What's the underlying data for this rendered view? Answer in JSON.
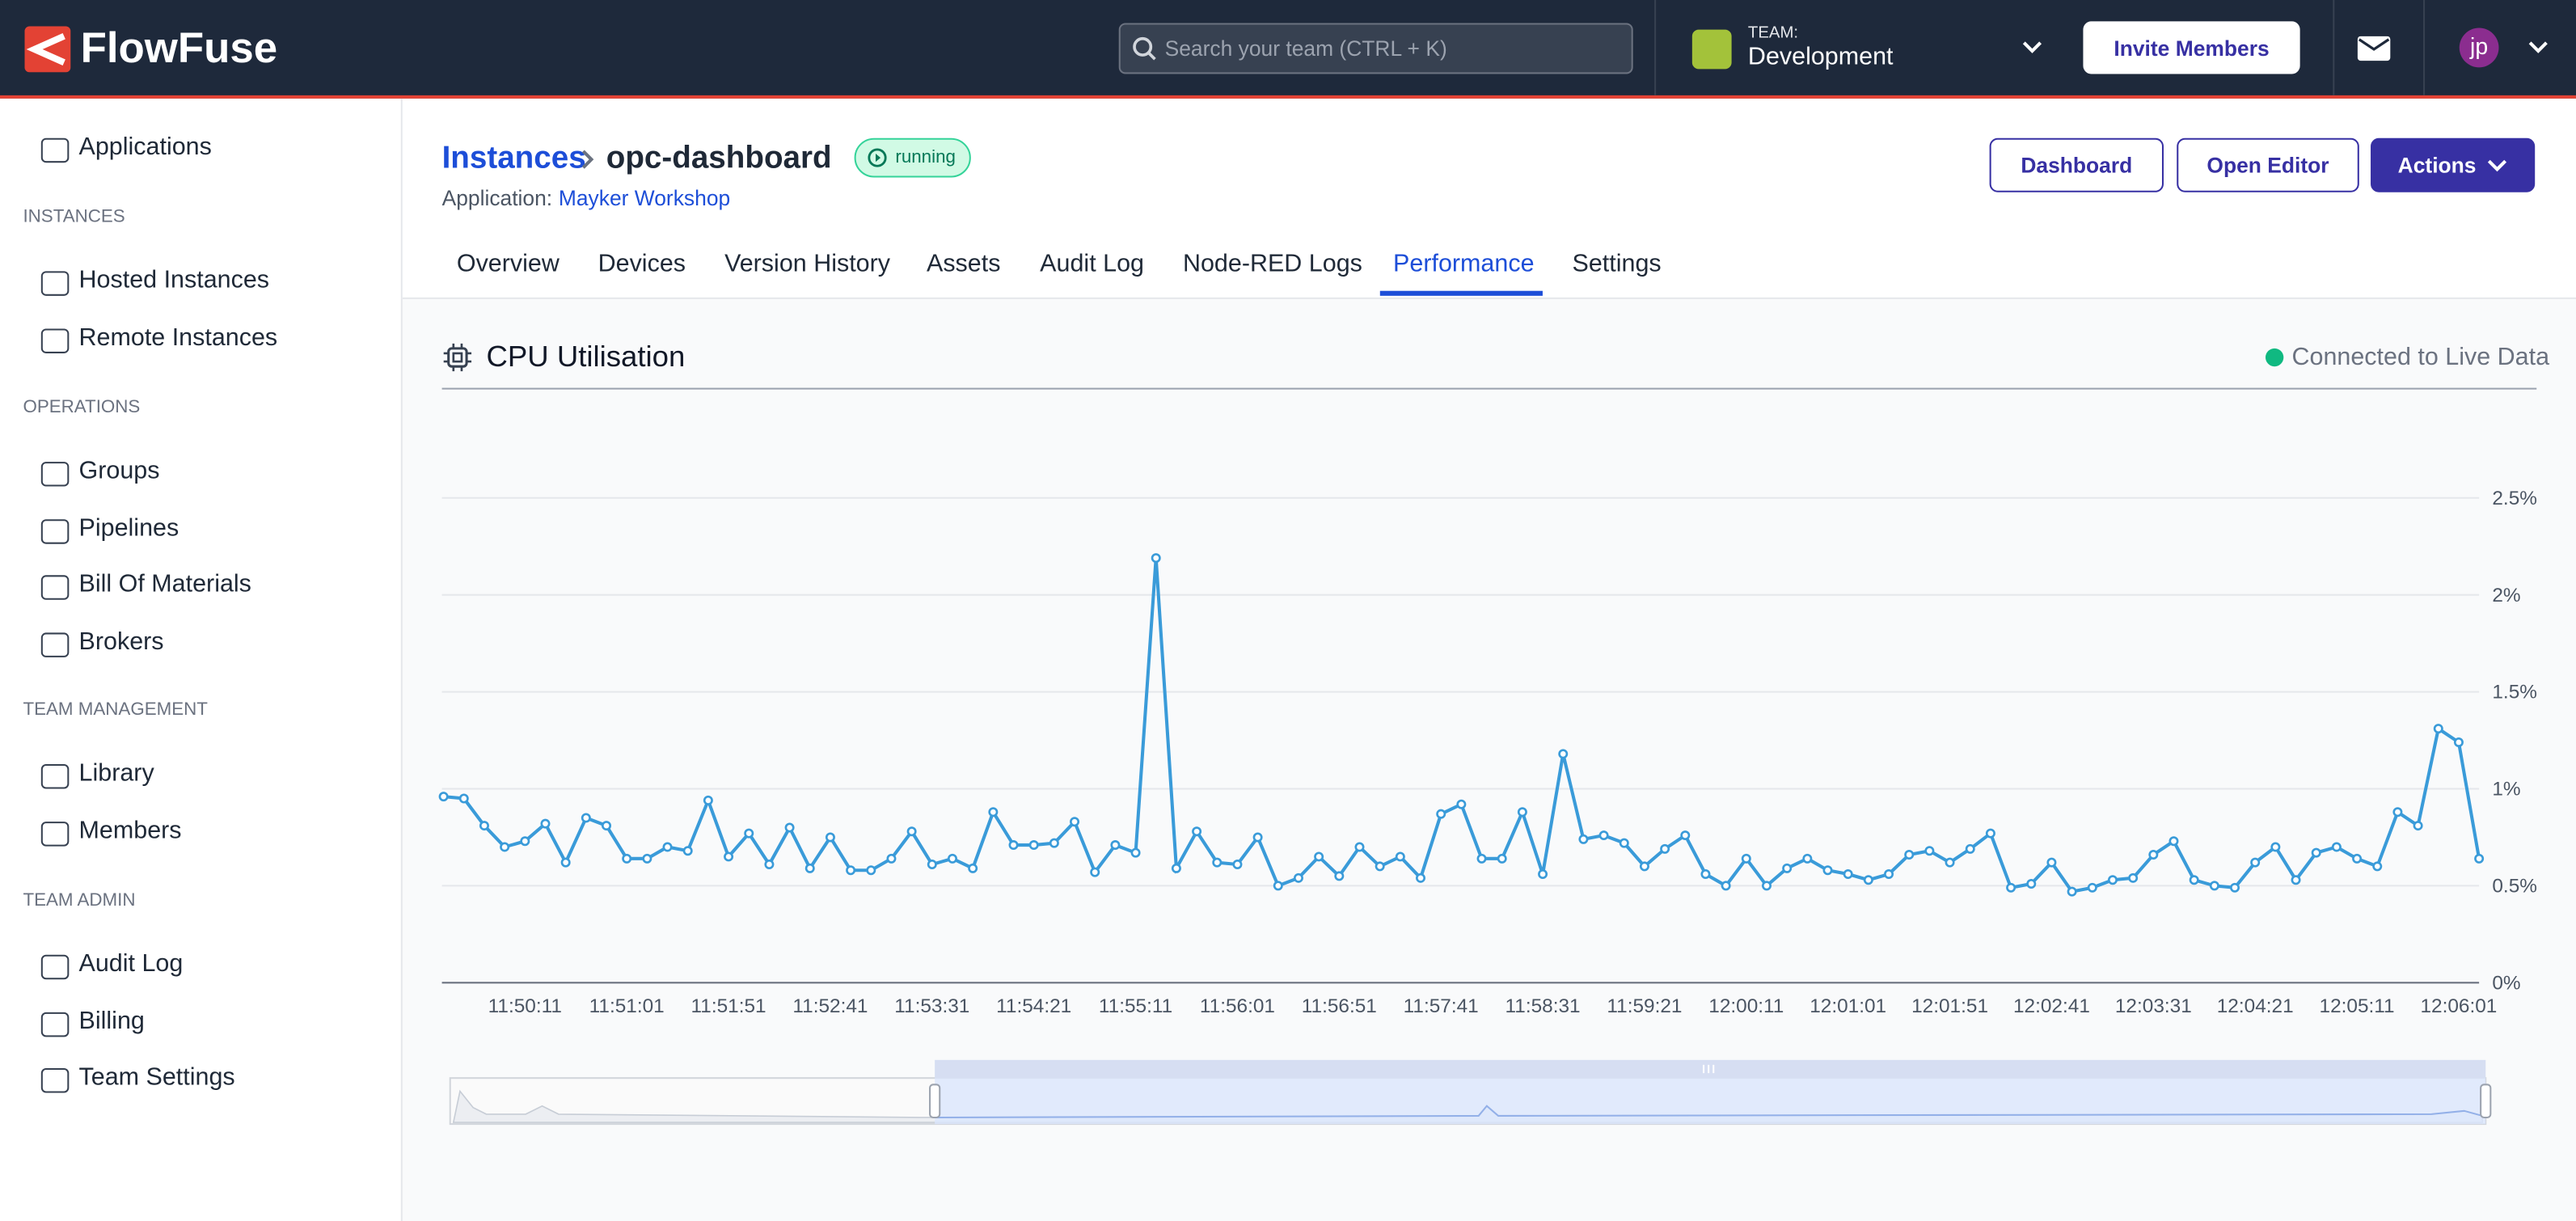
{
  "header": {
    "brand": "FlowFuse",
    "search_placeholder": "Search your team (CTRL + K)",
    "team_label": "TEAM:",
    "team_name": "Development",
    "invite_button": "Invite Members",
    "avatar": "jp"
  },
  "sidebar": {
    "top": "Applications",
    "sections": [
      {
        "title": "INSTANCES",
        "items": [
          "Hosted Instances",
          "Remote Instances"
        ]
      },
      {
        "title": "OPERATIONS",
        "items": [
          "Groups",
          "Pipelines",
          "Bill Of Materials",
          "Brokers"
        ]
      },
      {
        "title": "TEAM MANAGEMENT",
        "items": [
          "Library",
          "Members"
        ]
      },
      {
        "title": "TEAM ADMIN",
        "items": [
          "Audit Log",
          "Billing",
          "Team Settings"
        ]
      }
    ]
  },
  "page": {
    "breadcrumb": "Instances",
    "instance_name": "opc-dashboard",
    "status": "running",
    "application_label": "Application:",
    "application_name": "Mayker Workshop",
    "buttons": [
      "Dashboard",
      "Open Editor",
      "Actions"
    ],
    "tabs": [
      "Overview",
      "Devices",
      "Version History",
      "Assets",
      "Audit Log",
      "Node-RED Logs",
      "Performance",
      "Settings"
    ],
    "active_tab": 6
  },
  "panel": {
    "connection_status": "Connected to Live Data"
  },
  "chart_data": {
    "type": "line",
    "title": "CPU Utilisation",
    "color": "#3a9bd9",
    "grid": true,
    "ylim": [
      0,
      2.5
    ],
    "yticks": [
      {
        "value": 0,
        "label": "0%"
      },
      {
        "value": 0.5,
        "label": "0.5%"
      },
      {
        "value": 1,
        "label": "1%"
      },
      {
        "value": 1.5,
        "label": "1.5%"
      },
      {
        "value": 2,
        "label": "2%"
      },
      {
        "value": 2.5,
        "label": "2.5%"
      }
    ],
    "categories": [
      null,
      null,
      null,
      null,
      "11:50:11",
      null,
      null,
      null,
      null,
      "11:51:01",
      null,
      null,
      null,
      null,
      "11:51:51",
      null,
      null,
      null,
      null,
      "11:52:41",
      null,
      null,
      null,
      null,
      "11:53:31",
      null,
      null,
      null,
      null,
      "11:54:21",
      null,
      null,
      null,
      null,
      "11:55:11",
      null,
      null,
      null,
      null,
      "11:56:01",
      null,
      null,
      null,
      null,
      "11:56:51",
      null,
      null,
      null,
      null,
      "11:57:41",
      null,
      null,
      null,
      null,
      "11:58:31",
      null,
      null,
      null,
      null,
      "11:59:21",
      null,
      null,
      null,
      null,
      "12:00:11",
      null,
      null,
      null,
      null,
      "12:01:01",
      null,
      null,
      null,
      null,
      "12:01:51",
      null,
      null,
      null,
      null,
      "12:02:41",
      null,
      null,
      null,
      null,
      "12:03:31",
      null,
      null,
      null,
      null,
      "12:04:21",
      null,
      null,
      null,
      null,
      "12:05:11",
      null,
      null,
      null,
      null,
      "12:06:01",
      null
    ],
    "values": [
      0.96,
      0.95,
      0.81,
      0.7,
      0.73,
      0.82,
      0.62,
      0.85,
      0.81,
      0.64,
      0.64,
      0.7,
      0.68,
      0.94,
      0.65,
      0.77,
      0.61,
      0.8,
      0.59,
      0.75,
      0.58,
      0.58,
      0.64,
      0.78,
      0.61,
      0.64,
      0.59,
      0.88,
      0.71,
      0.71,
      0.72,
      0.83,
      0.57,
      0.71,
      0.67,
      2.19,
      0.59,
      0.78,
      0.62,
      0.61,
      0.75,
      0.5,
      0.54,
      0.65,
      0.55,
      0.7,
      0.6,
      0.65,
      0.54,
      0.87,
      0.92,
      0.64,
      0.64,
      0.88,
      0.56,
      1.18,
      0.74,
      0.76,
      0.72,
      0.6,
      0.69,
      0.76,
      0.56,
      0.5,
      0.64,
      0.5,
      0.59,
      0.64,
      0.58,
      0.56,
      0.53,
      0.56,
      0.66,
      0.68,
      0.62,
      0.69,
      0.77,
      0.49,
      0.51,
      0.62,
      0.47,
      0.49,
      0.53,
      0.54,
      0.66,
      0.73,
      0.53,
      0.5,
      0.49,
      0.62,
      0.7,
      0.53,
      0.67,
      0.7,
      0.64,
      0.6,
      0.88,
      0.81,
      1.31,
      1.24,
      0.64
    ]
  }
}
